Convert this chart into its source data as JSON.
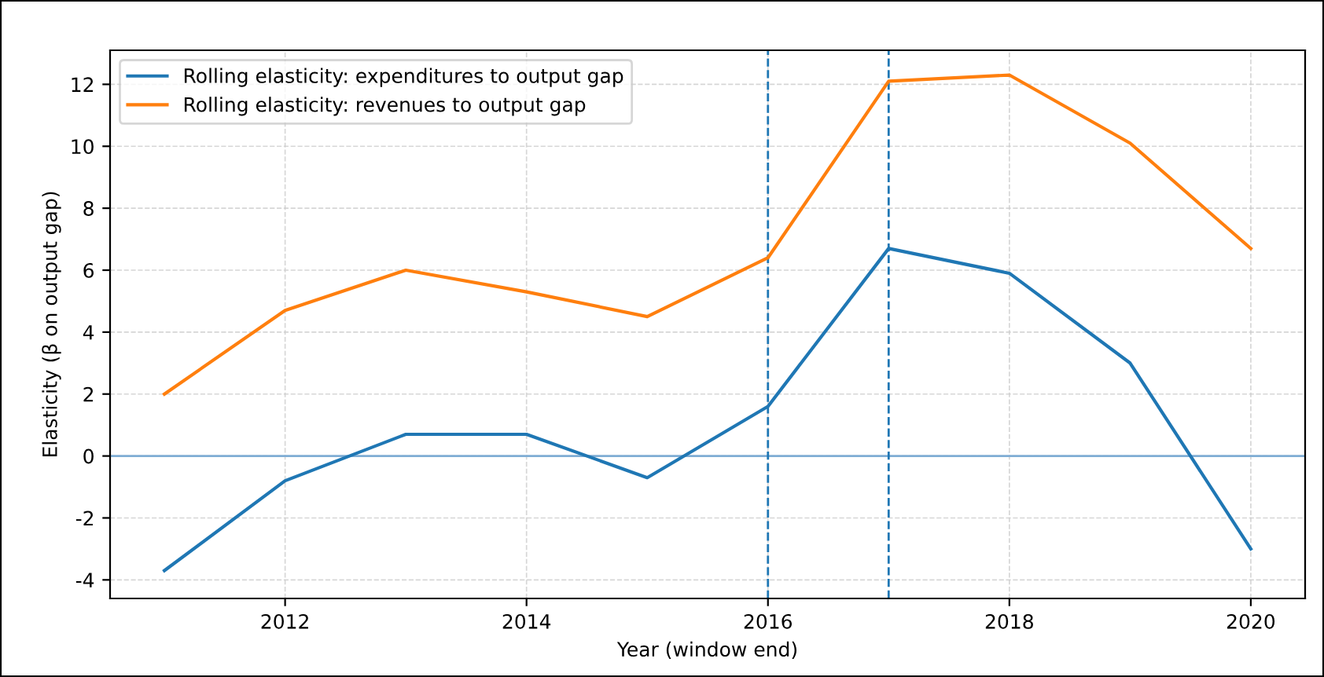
{
  "chart_data": {
    "type": "line",
    "xlabel": "Year (window end)",
    "ylabel": "Elasticity (β on output gap)",
    "x": [
      2011,
      2012,
      2013,
      2014,
      2015,
      2016,
      2017,
      2018,
      2019,
      2020
    ],
    "series": [
      {
        "name": "Rolling elasticity: expenditures to output gap",
        "color": "#1f77b4",
        "values": [
          -3.7,
          -0.8,
          0.7,
          0.7,
          -0.7,
          1.6,
          6.7,
          5.9,
          3.0,
          -3.0
        ]
      },
      {
        "name": "Rolling elasticity: revenues to output gap",
        "color": "#ff7f0e",
        "values": [
          2.0,
          4.7,
          6.0,
          5.3,
          4.5,
          6.4,
          12.1,
          12.3,
          10.1,
          6.7
        ]
      }
    ],
    "xlim": [
      2010.55,
      2020.45
    ],
    "xticks": [
      2012,
      2014,
      2016,
      2018,
      2020
    ],
    "ylim": [
      -4.6,
      13.1
    ],
    "yticks": [
      -4,
      -2,
      0,
      2,
      4,
      6,
      8,
      10,
      12
    ],
    "ref_lines": [
      {
        "axis": "y",
        "value": 0,
        "color": "#7fadd4",
        "line_style": "solid"
      },
      {
        "axis": "x",
        "value": 2016,
        "color": "#1f77b4",
        "line_style": "dashed"
      },
      {
        "axis": "x",
        "value": 2017,
        "color": "#1f77b4",
        "line_style": "dashed"
      }
    ],
    "grid": true,
    "legend": "top left",
    "marker": "none",
    "line_style": "solid"
  }
}
